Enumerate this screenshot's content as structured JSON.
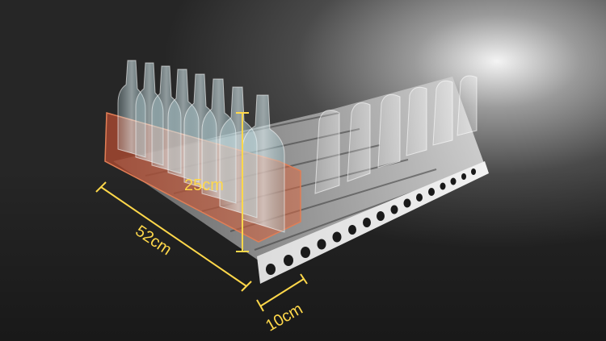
{
  "scene": {
    "subject": "shelf-pusher-tray-with-bottles",
    "background_color": "#2a2a2a",
    "accent_color": "#ffd84a",
    "divider_tint_color": "#c9583a"
  },
  "dimensions": {
    "length_label": "52cm",
    "width_label": "10cm",
    "height_label": "25cm"
  }
}
